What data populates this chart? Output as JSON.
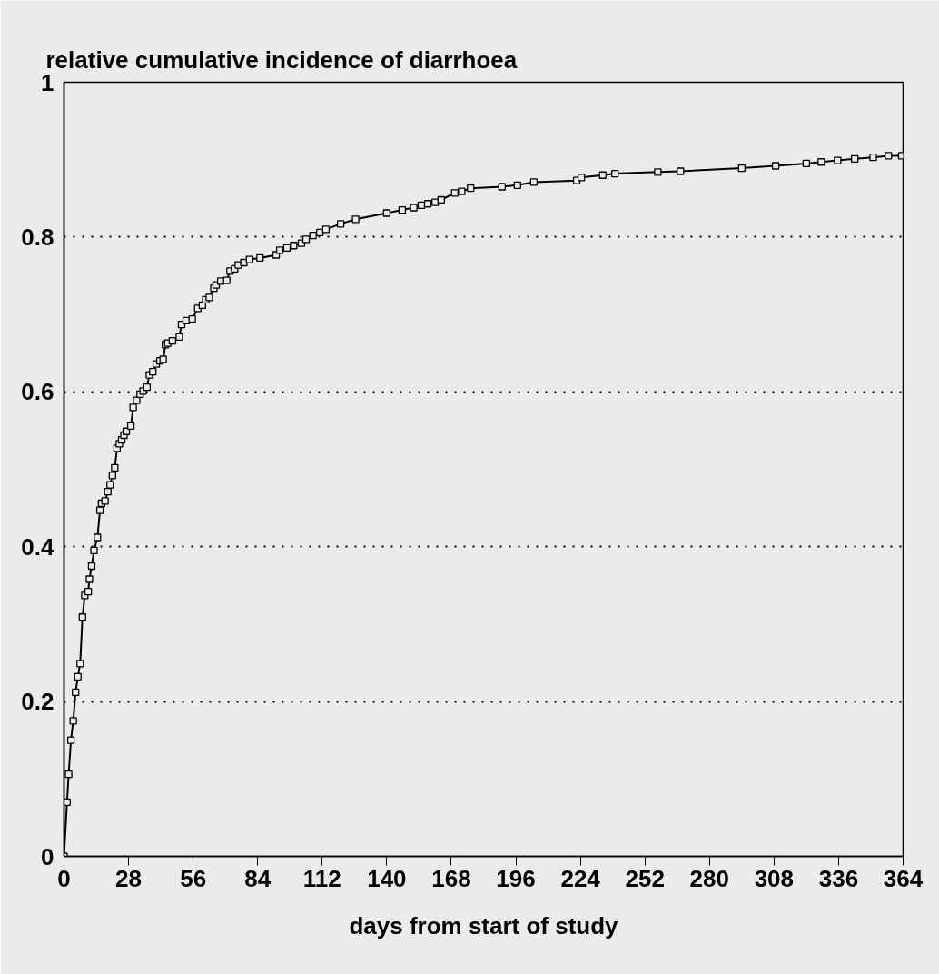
{
  "chart_data": {
    "type": "line",
    "title": "relative cumulative incidence of diarrhoea",
    "xlabel": "days from start of study",
    "x": [
      0,
      1.3,
      2,
      3,
      4,
      5,
      6,
      7,
      8,
      9,
      10.5,
      11,
      12,
      13,
      14.5,
      15.6,
      16.3,
      17.8,
      19,
      20,
      21,
      22,
      23,
      24,
      25,
      26,
      27,
      29,
      30,
      31.5,
      33,
      34.3,
      36,
      37,
      38.5,
      40,
      41.6,
      43,
      44,
      45,
      47,
      50,
      51,
      53,
      55.6,
      58,
      60,
      61.5,
      63,
      65,
      66,
      68,
      70.6,
      72,
      74,
      75.6,
      78,
      80.5,
      85,
      92,
      93.6,
      96.7,
      99.6,
      103,
      105,
      108,
      111,
      113.6,
      120,
      126.5,
      140,
      146.7,
      151.7,
      155,
      157.8,
      161,
      163.6,
      169.5,
      172.5,
      176.4,
      190,
      196.7,
      203.8,
      222.4,
      224.4,
      233.7,
      239,
      257.6,
      267.4,
      294,
      308.7,
      322,
      328.5,
      335.6,
      343,
      351,
      357.6,
      363.4
    ],
    "series": [
      {
        "color": "#000000",
        "values": [
          0,
          0.07,
          0.106,
          0.15,
          0.175,
          0.212,
          0.232,
          0.249,
          0.309,
          0.337,
          0.342,
          0.358,
          0.375,
          0.395,
          0.412,
          0.447,
          0.456,
          0.459,
          0.471,
          0.48,
          0.492,
          0.502,
          0.527,
          0.533,
          0.538,
          0.544,
          0.549,
          0.556,
          0.58,
          0.589,
          0.597,
          0.601,
          0.606,
          0.622,
          0.626,
          0.636,
          0.64,
          0.642,
          0.661,
          0.663,
          0.666,
          0.671,
          0.687,
          0.692,
          0.694,
          0.708,
          0.712,
          0.719,
          0.722,
          0.734,
          0.738,
          0.743,
          0.744,
          0.756,
          0.759,
          0.764,
          0.767,
          0.771,
          0.773,
          0.777,
          0.783,
          0.786,
          0.789,
          0.792,
          0.797,
          0.802,
          0.806,
          0.81,
          0.817,
          0.823,
          0.831,
          0.835,
          0.838,
          0.841,
          0.843,
          0.845,
          0.848,
          0.857,
          0.859,
          0.863,
          0.865,
          0.867,
          0.871,
          0.873,
          0.877,
          0.88,
          0.882,
          0.884,
          0.885,
          0.889,
          0.892,
          0.895,
          0.897,
          0.899,
          0.901,
          0.903,
          0.905,
          0.905
        ]
      }
    ],
    "xlim": [
      0,
      364
    ],
    "xticks": [
      0,
      28,
      56,
      84,
      112,
      140,
      168,
      196,
      224,
      252,
      280,
      308,
      336,
      364
    ],
    "ylim": [
      0,
      1
    ],
    "yticks": [
      0,
      0.2,
      0.4,
      0.6,
      0.8,
      1
    ],
    "grid": "y",
    "marker": "square",
    "line_style": "solid"
  }
}
